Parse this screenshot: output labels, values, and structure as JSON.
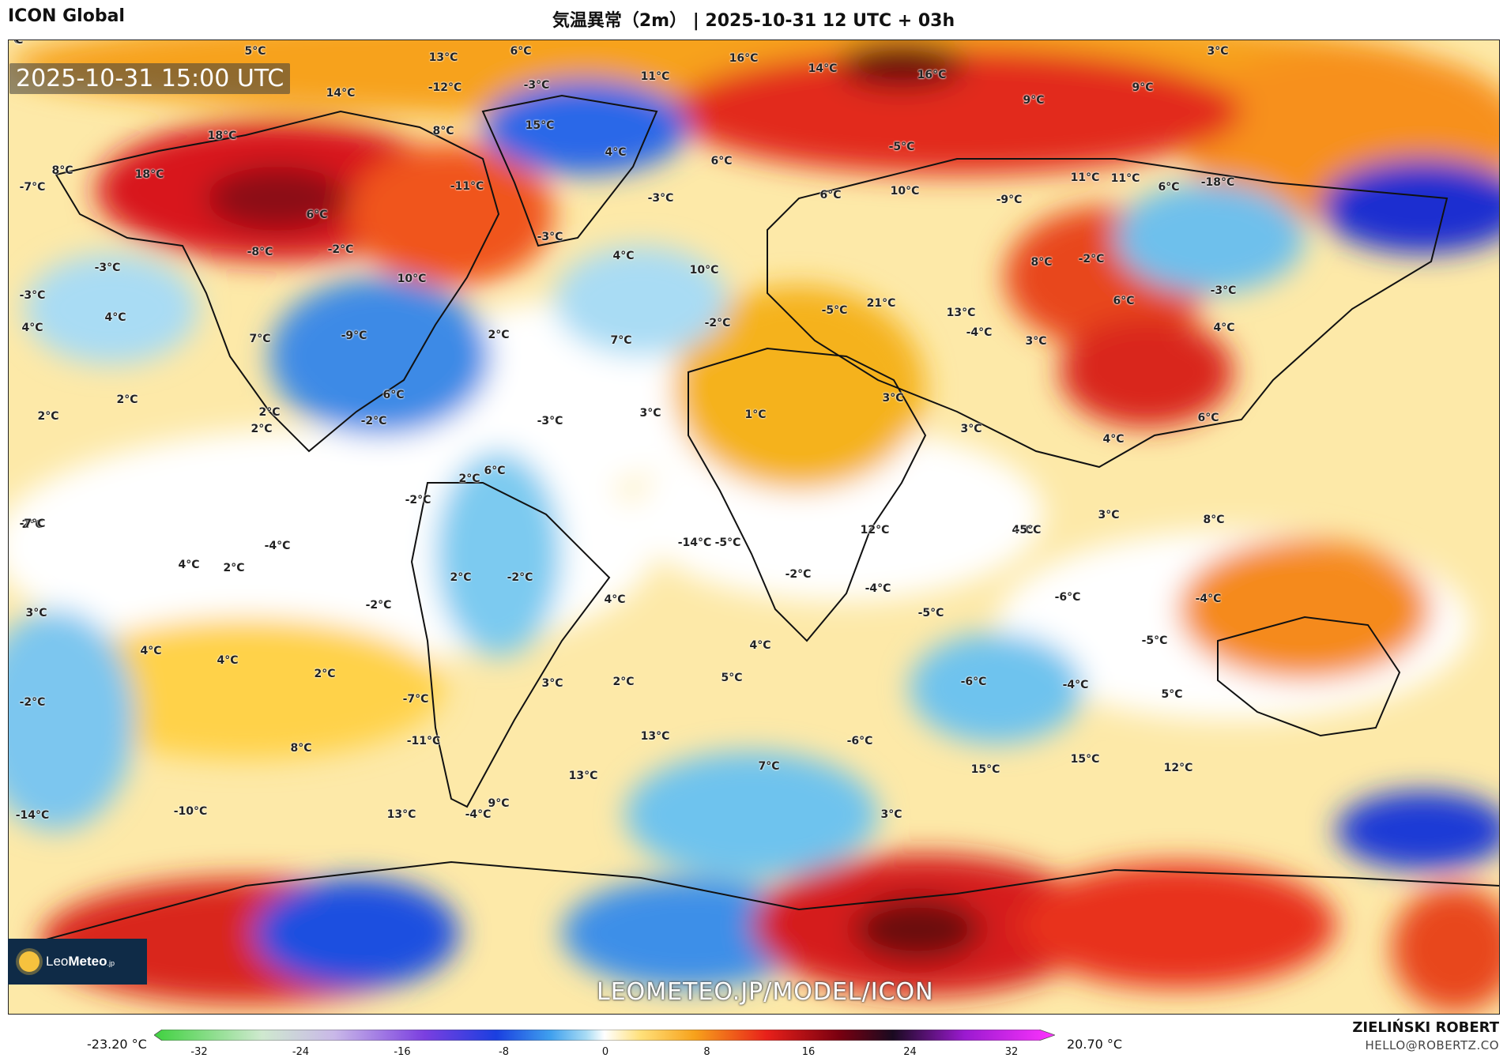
{
  "header": {
    "model": "ICON Global",
    "title": "気温異常（2m） | 2025-10-31 12 UTC + 03h"
  },
  "map": {
    "timestamp": "2025-10-31 15:00 UTC",
    "watermark": "LEOMETEO.JP/MODEL/ICON",
    "logo_text_light": "Leo",
    "logo_text_bold": "Meteo",
    "logo_suffix": ".jp",
    "labels": [
      {
        "t": "5°C"
      },
      {
        "t": "13°C"
      },
      {
        "t": "6°C"
      },
      {
        "t": "16°C"
      },
      {
        "t": "14°C"
      },
      {
        "t": "16°C"
      },
      {
        "t": "3°C"
      },
      {
        "t": "-12°C"
      },
      {
        "t": "-3°C"
      },
      {
        "t": "11°C"
      },
      {
        "t": "9°C"
      },
      {
        "t": "14°C"
      },
      {
        "t": "9°C"
      },
      {
        "t": "18°C"
      },
      {
        "t": "8°C"
      },
      {
        "t": "15°C"
      },
      {
        "t": "8°C"
      },
      {
        "t": "18°C"
      },
      {
        "t": "-7°C"
      },
      {
        "t": "4°C"
      },
      {
        "t": "-5°C"
      },
      {
        "t": "-11°C"
      },
      {
        "t": "6°C"
      },
      {
        "t": "11°C"
      },
      {
        "t": "11°C"
      },
      {
        "t": "6°C"
      },
      {
        "t": "-18°C"
      },
      {
        "t": "6°C"
      },
      {
        "t": "-3°C"
      },
      {
        "t": "6°C"
      },
      {
        "t": "10°C"
      },
      {
        "t": "-9°C"
      },
      {
        "t": "-3°C"
      },
      {
        "t": "-8°C"
      },
      {
        "t": "-2°C"
      },
      {
        "t": "-3°C"
      },
      {
        "t": "4°C"
      },
      {
        "t": "8°C"
      },
      {
        "t": "-2°C"
      },
      {
        "t": "-3°C"
      },
      {
        "t": "10°C"
      },
      {
        "t": "10°C"
      },
      {
        "t": "-5°C"
      },
      {
        "t": "21°C"
      },
      {
        "t": "6°C"
      },
      {
        "t": "-3°C"
      },
      {
        "t": "4°C"
      },
      {
        "t": "4°C"
      },
      {
        "t": "-2°C"
      },
      {
        "t": "13°C"
      },
      {
        "t": "4°C"
      },
      {
        "t": "7°C"
      },
      {
        "t": "-9°C"
      },
      {
        "t": "2°C"
      },
      {
        "t": "7°C"
      },
      {
        "t": "-4°C"
      },
      {
        "t": "3°C"
      },
      {
        "t": "2°C"
      },
      {
        "t": "2°C"
      },
      {
        "t": "6°C"
      },
      {
        "t": "3°C"
      },
      {
        "t": "3°C"
      },
      {
        "t": "2°C"
      },
      {
        "t": "2°C"
      },
      {
        "t": "-2°C"
      },
      {
        "t": "-3°C"
      },
      {
        "t": "1°C"
      },
      {
        "t": "3°C"
      },
      {
        "t": "6°C"
      },
      {
        "t": "4°C"
      },
      {
        "t": "2°C"
      },
      {
        "t": "6°C"
      },
      {
        "t": "-2°C"
      },
      {
        "t": "2°C"
      },
      {
        "t": "-7°C"
      },
      {
        "t": "4°C"
      },
      {
        "t": "-14°C"
      },
      {
        "t": "-5°C"
      },
      {
        "t": "12°C"
      },
      {
        "t": "3°C"
      },
      {
        "t": "-5°C"
      },
      {
        "t": "8°C"
      },
      {
        "t": "-4°C"
      },
      {
        "t": "4°C"
      },
      {
        "t": "2°C"
      },
      {
        "t": "2°C"
      },
      {
        "t": "-2°C"
      },
      {
        "t": "-2°C"
      },
      {
        "t": "4°C"
      },
      {
        "t": "-4°C"
      },
      {
        "t": "-2°C"
      },
      {
        "t": "-5°C"
      },
      {
        "t": "-4°C"
      },
      {
        "t": "3°C"
      },
      {
        "t": "-6°C"
      },
      {
        "t": "-5°C"
      },
      {
        "t": "4°C"
      },
      {
        "t": "4°C"
      },
      {
        "t": "4°C"
      },
      {
        "t": "2°C"
      },
      {
        "t": "3°C"
      },
      {
        "t": "2°C"
      },
      {
        "t": "5°C"
      },
      {
        "t": "-6°C"
      },
      {
        "t": "-4°C"
      },
      {
        "t": "-2°C"
      },
      {
        "t": "5°C"
      },
      {
        "t": "-7°C"
      },
      {
        "t": "-11°C"
      },
      {
        "t": "13°C"
      },
      {
        "t": "-6°C"
      },
      {
        "t": "7°C"
      },
      {
        "t": "15°C"
      },
      {
        "t": "15°C"
      },
      {
        "t": "12°C"
      },
      {
        "t": "8°C"
      },
      {
        "t": "13°C"
      },
      {
        "t": "-14°C"
      },
      {
        "t": "-10°C"
      },
      {
        "t": "13°C"
      },
      {
        "t": "-4°C"
      },
      {
        "t": "9°C"
      },
      {
        "t": "3°C"
      },
      {
        "t": "-4°C"
      },
      {
        "t": "11°C"
      }
    ]
  },
  "legend": {
    "min_label": "-23.20 °C",
    "max_label": "20.70 °C",
    "ticks": [
      "-32",
      "-24",
      "-16",
      "-8",
      "0",
      "8",
      "16",
      "24",
      "32"
    ],
    "colors": {
      "cold_extreme": "#3fd13f",
      "cold": "#1a3fe0",
      "cool": "#6fc8f0",
      "neutral": "#ffffff",
      "warm": "#ffd84a",
      "hot": "#e8201a",
      "very_hot": "#7a0010",
      "extreme": "#ff33ff"
    }
  },
  "credits": {
    "author": "ZIELIŃSKI ROBERT",
    "email": "HELLO@ROBERTZ.CO"
  }
}
